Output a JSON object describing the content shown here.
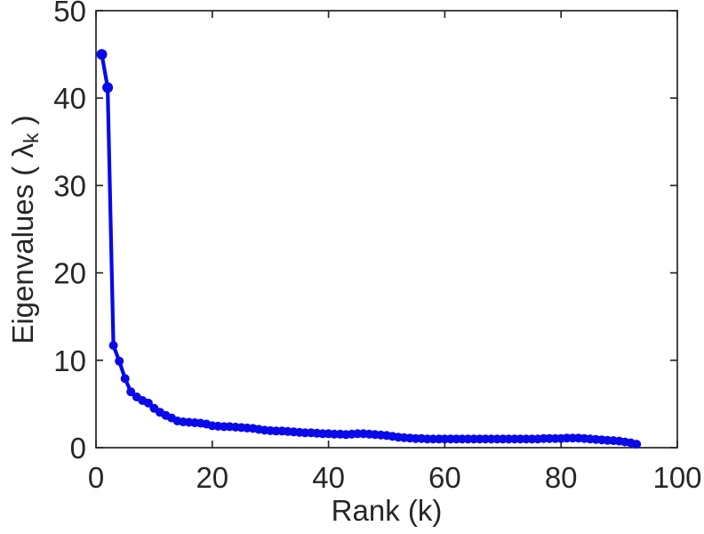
{
  "figure": {
    "background": "#ffffff",
    "axes_color": "#262626",
    "tick_label_color": "#262626",
    "label_color": "#262626"
  },
  "x_axis": {
    "label": "Rank (k)"
  },
  "y_axis": {
    "label_prefix": "Eigenvalues ( ",
    "label_symbol": "λ",
    "label_subscript": "k",
    "label_suffix": " )"
  },
  "chart_data": {
    "type": "line",
    "title": "",
    "xlabel": "Rank (k)",
    "ylabel": "Eigenvalues ( lambda_k )",
    "series_name": "eigenvalues",
    "line_color": "#0909EA",
    "marker": "filled-circle",
    "grid": false,
    "legend": null,
    "xlim": [
      0,
      100
    ],
    "ylim": [
      0,
      50
    ],
    "xticks": [
      0,
      20,
      40,
      60,
      80,
      100
    ],
    "yticks": [
      0,
      10,
      20,
      30,
      40,
      50
    ],
    "x": [
      1,
      2,
      3,
      4,
      5,
      6,
      7,
      8,
      9,
      10,
      11,
      12,
      13,
      14,
      15,
      16,
      17,
      18,
      19,
      20,
      21,
      22,
      23,
      24,
      25,
      26,
      27,
      28,
      29,
      30,
      31,
      32,
      33,
      34,
      35,
      36,
      37,
      38,
      39,
      40,
      41,
      42,
      43,
      44,
      45,
      46,
      47,
      48,
      49,
      50,
      51,
      52,
      53,
      54,
      55,
      56,
      57,
      58,
      59,
      60,
      61,
      62,
      63,
      64,
      65,
      66,
      67,
      68,
      69,
      70,
      71,
      72,
      73,
      74,
      75,
      76,
      77,
      78,
      79,
      80,
      81,
      82,
      83,
      84,
      85,
      86,
      87,
      88,
      89,
      90,
      91,
      92,
      93
    ],
    "y": [
      45.0,
      41.2,
      11.7,
      9.9,
      7.9,
      6.4,
      5.8,
      5.4,
      5.1,
      4.5,
      4.05,
      3.7,
      3.4,
      3.05,
      2.95,
      2.9,
      2.85,
      2.8,
      2.7,
      2.5,
      2.45,
      2.4,
      2.4,
      2.35,
      2.3,
      2.25,
      2.2,
      2.1,
      2.0,
      1.95,
      1.9,
      1.9,
      1.85,
      1.8,
      1.75,
      1.7,
      1.7,
      1.65,
      1.6,
      1.6,
      1.55,
      1.55,
      1.5,
      1.55,
      1.6,
      1.6,
      1.55,
      1.5,
      1.45,
      1.4,
      1.3,
      1.2,
      1.15,
      1.1,
      1.05,
      1.05,
      1.0,
      1.0,
      1.0,
      1.0,
      1.0,
      1.0,
      1.0,
      1.0,
      1.0,
      1.0,
      1.0,
      1.0,
      1.0,
      1.0,
      1.0,
      1.0,
      1.0,
      1.0,
      1.0,
      1.0,
      1.05,
      1.05,
      1.05,
      1.05,
      1.1,
      1.1,
      1.1,
      1.05,
      1.0,
      0.95,
      0.9,
      0.85,
      0.8,
      0.75,
      0.65,
      0.55,
      0.4
    ]
  }
}
